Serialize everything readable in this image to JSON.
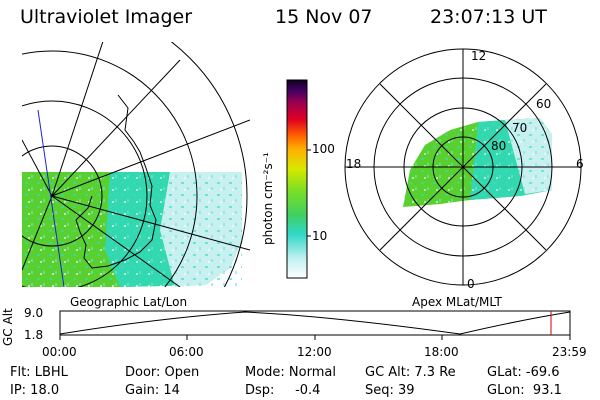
{
  "header": {
    "instrument": "Ultraviolet Imager",
    "date": "15 Nov 07",
    "time": "23:07:13 UT"
  },
  "colorbar": {
    "unit_label": "photon cm⁻²s⁻¹",
    "ticks": [
      "100",
      "10"
    ]
  },
  "left_panel": {
    "label": "Geographic Lat/Lon"
  },
  "right_panel": {
    "label": "Apex MLat/MLT",
    "mlt_labels": {
      "top": "12",
      "left": "18",
      "right": "6",
      "bottom": "0"
    },
    "mlat_labels": [
      "60",
      "70",
      "80"
    ]
  },
  "altitude_plot": {
    "ylabel": "GC Alt",
    "yticks": [
      "9.0",
      "1.8"
    ],
    "xticks": [
      "00:00",
      "06:00",
      "12:00",
      "18:00",
      "23:59"
    ]
  },
  "status": {
    "flt": "Flt: LBHL",
    "ip": "IP: 18.0",
    "door": "Door: Open",
    "gain": "Gain: 14",
    "mode": "Mode: Normal",
    "dsp": "Dsp:     -0.4",
    "gcalt": "GC Alt: 7.3 Re",
    "seq": "Seq: 39",
    "glat": "GLat: -69.6",
    "glon": "GLon:  93.1"
  },
  "colors": {
    "marker": "#cc0000"
  }
}
